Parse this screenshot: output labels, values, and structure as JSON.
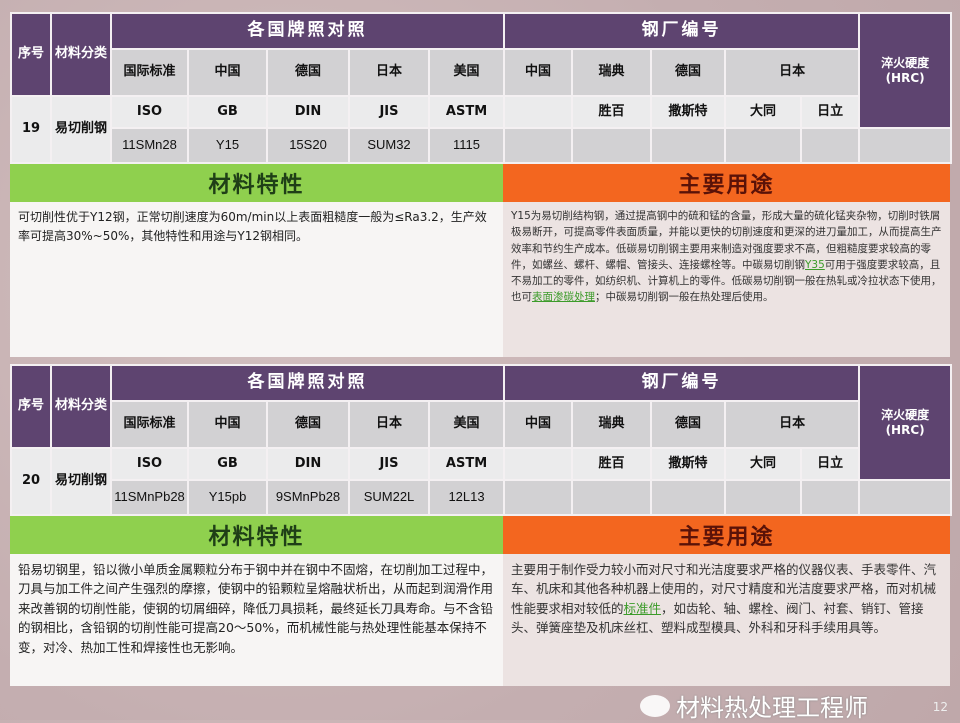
{
  "header": {
    "seq": "序号",
    "category": "材料分类",
    "brand_compare": "各国牌照对照",
    "mill_codes": "钢厂编号",
    "hardness": "淬火硬度 (HRC)",
    "countries": [
      "国际标准",
      "中国",
      "德国",
      "日本",
      "美国"
    ],
    "mill_countries": [
      "中国",
      "瑞典",
      "德国",
      "日本"
    ],
    "standards": [
      "ISO",
      "GB",
      "DIN",
      "JIS",
      "ASTM"
    ],
    "mills": [
      "",
      "胜百",
      "撒斯特",
      "大同",
      "日立"
    ]
  },
  "section_labels": {
    "properties": "材料特性",
    "uses": "主要用途"
  },
  "entries": [
    {
      "seq": "19",
      "category": "易切削钢",
      "grades": [
        "11SMn28",
        "Y15",
        "15S20",
        "SUM32",
        "1115"
      ],
      "properties": "可切削性优于Y12钢，正常切削速度为60m/min以上表面粗糙度一般为≤Ra3.2，生产效率可提高30%~50%，其他特性和用途与Y12钢相同。",
      "uses_a": "Y15为易切削结构钢，通过提高钢中的硫和锰的含量，形成大量的硫化锰夹杂物，切削时铁屑极易断开，可提高零件表面质量，并能以更快的切削速度和更深的进刀量加工，从而提高生产效率和节约生产成本。低碳易切削钢主要用来制造对强度要求不高，但粗糙度要求较高的零件，如螺丝、螺杆、螺帽、管接头、连接螺栓等。中碳易切削钢",
      "uses_link1": "Y35",
      "uses_b": "可用于强度要求较高，且不易加工的零件，如纺织机、计算机上的零件。低碳易切削钢一般在热轧或冷拉状态下使用，也可",
      "uses_link2": "表面渗碳处理",
      "uses_c": "；中碳易切削钢一般在热处理后使用。"
    },
    {
      "seq": "20",
      "category": "易切削钢",
      "grades": [
        "11SMnPb28",
        "Y15pb",
        "9SMnPb28",
        "SUM22L",
        "12L13"
      ],
      "properties": "铅易切钢里，铅以微小单质金属颗粒分布于钢中并在钢中不固熔，在切削加工过程中，刀具与加工件之间产生强烈的摩擦，使钢中的铅颗粒呈熔融状析出，从而起到润滑作用来改善钢的切削性能，使钢的切屑细碎，降低刀具损耗，最终延长刀具寿命。与不含铅的钢相比，含铅钢的切削性能可提高20～50%，而机械性能与热处理性能基本保持不变，对冷、热加工性和焊接性也无影响。",
      "uses_a": "主要用于制作受力较小而对尺寸和光洁度要求严格的仪器仪表、手表零件、汽车、机床和其他各种机器上使用的，对尺寸精度和光洁度要求严格，而对机械性能要求相对较低的",
      "uses_link1": "标准件",
      "uses_b": "，如齿轮、轴、螺栓、阀门、衬套、销钉、管接头、弹簧座垫及机床丝杠、塑料成型模具、外科和牙科手续用具等。",
      "uses_link2": "",
      "uses_c": ""
    }
  ],
  "watermark": "材料热处理工程师",
  "page_number": "12",
  "colors": {
    "header": "#5e4470",
    "properties_bar": "#8fd04e",
    "uses_bar": "#f3661f",
    "link": "#3c9b2a"
  }
}
